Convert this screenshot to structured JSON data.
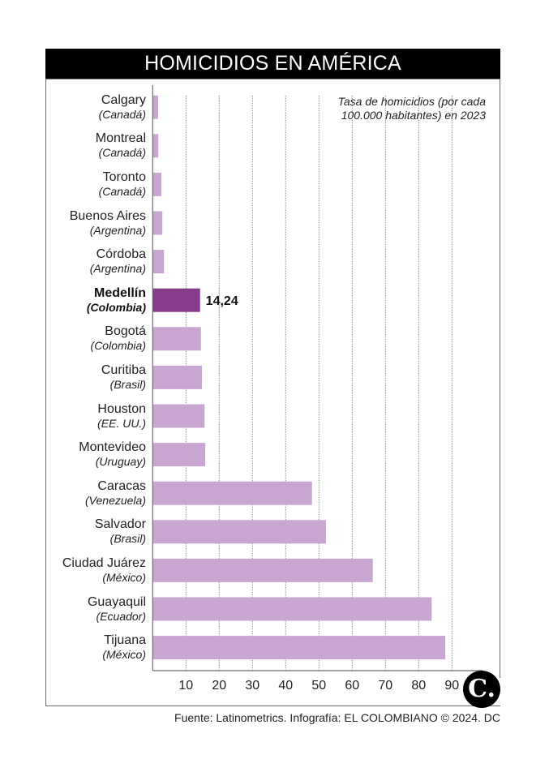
{
  "header": {
    "title": "HOMICIDIOS EN AMÉRICA"
  },
  "subtitle_lines": [
    "Tasa de homicidios (por cada",
    "100.000 habitantes) en 2023"
  ],
  "footer": "Fuente: Latinometrics. Infografía: EL COLOMBIANO © 2024. DC",
  "logo": {
    "text": "C."
  },
  "colors": {
    "bar": "#c8a6d1",
    "highlight": "#873b8b",
    "grid": "#888888",
    "axis": "#6b6b6b"
  },
  "chart_data": {
    "type": "bar",
    "orientation": "horizontal",
    "title": "HOMICIDIOS EN AMÉRICA",
    "subtitle": "Tasa de homicidios (por cada 100.000 habitantes) en 2023",
    "categories": [
      {
        "city": "Calgary",
        "country": "(Canadá)"
      },
      {
        "city": "Montreal",
        "country": "(Canadá)"
      },
      {
        "city": "Toronto",
        "country": "(Canadá)"
      },
      {
        "city": "Buenos Aires",
        "country": "(Argentina)"
      },
      {
        "city": "Córdoba",
        "country": "(Argentina)"
      },
      {
        "city": "Medellín",
        "country": "(Colombia)"
      },
      {
        "city": "Bogotá",
        "country": "(Colombia)"
      },
      {
        "city": "Curitiba",
        "country": "(Brasil)"
      },
      {
        "city": "Houston",
        "country": "(EE. UU.)"
      },
      {
        "city": "Montevideo",
        "country": "(Uruguay)"
      },
      {
        "city": "Caracas",
        "country": "(Venezuela)"
      },
      {
        "city": "Salvador",
        "country": "(Brasil)"
      },
      {
        "city": "Ciudad Juárez",
        "country": "(México)"
      },
      {
        "city": "Guayaquil",
        "country": "(Ecuador)"
      },
      {
        "city": "Tijuana",
        "country": "(México)"
      }
    ],
    "values": [
      1.6,
      1.7,
      2.6,
      2.9,
      3.4,
      14.24,
      14.5,
      14.8,
      15.6,
      15.8,
      47.9,
      52.1,
      66.2,
      83.9,
      88.0
    ],
    "highlight_index": 5,
    "data_labels": [
      {
        "index": 5,
        "text": "14,24"
      }
    ],
    "x_ticks": [
      10,
      20,
      30,
      40,
      50,
      60,
      70,
      80,
      90
    ],
    "x_tick_labels": [
      "10",
      "20",
      "30",
      "40",
      "50",
      "60",
      "70",
      "80",
      "90"
    ],
    "xlim": [
      0,
      100
    ],
    "grid": true,
    "xlabel": "",
    "ylabel": ""
  }
}
